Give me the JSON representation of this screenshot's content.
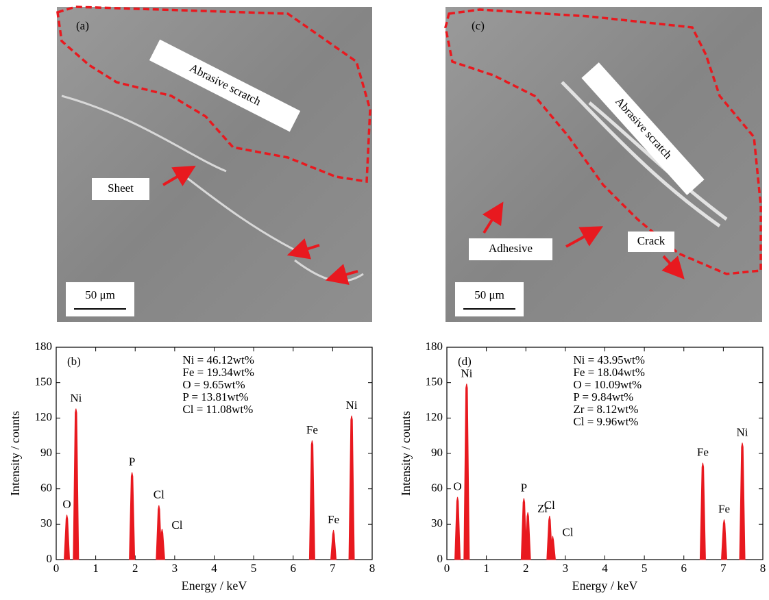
{
  "images": [
    {
      "label": "(a)",
      "annotations": [
        "Abrasive scratch",
        "Sheet"
      ],
      "scale_bar": "50 μm"
    },
    {
      "label": "(c)",
      "annotations": [
        "Abrasive scratch",
        "Adhesive",
        "Crack"
      ],
      "scale_bar": "50 μm"
    }
  ],
  "chart_data": [
    {
      "type": "spectrum",
      "panel": "(b)",
      "xlabel": "Energy / keV",
      "ylabel": "Intensity / counts",
      "annotations": [
        "Ni = 46.12wt%",
        "Fe = 19.34wt%",
        "O = 9.65wt%",
        "P = 13.81wt%",
        "Cl = 11.08wt%"
      ],
      "categories": [
        "O",
        "Ni",
        "P",
        "Cl",
        "Cl",
        "Fe",
        "Fe",
        "Ni"
      ],
      "x": [
        0.27,
        0.5,
        1.92,
        2.6,
        2.68,
        6.48,
        7.02,
        7.48
      ],
      "values": [
        38,
        128,
        74,
        46,
        26,
        101,
        25,
        122
      ],
      "color": "#e8191f",
      "xlim": [
        0,
        8
      ],
      "ylim": [
        0,
        180
      ],
      "xticks": [
        0,
        1,
        2,
        3,
        4,
        5,
        6,
        7,
        8
      ],
      "yticks": [
        0,
        30,
        60,
        90,
        120,
        150,
        180
      ]
    },
    {
      "type": "spectrum",
      "panel": "(d)",
      "xlabel": "Energy / keV",
      "ylabel": "Intensity / counts",
      "annotations": [
        "Ni = 43.95wt%",
        "Fe = 18.04wt%",
        "O = 10.09wt%",
        "P = 9.84wt%",
        "Zr = 8.12wt%",
        "Cl = 9.96wt%"
      ],
      "categories": [
        "O",
        "Ni",
        "P",
        "Zr",
        "Cl",
        "Cl",
        "Fe",
        "Fe",
        "Ni"
      ],
      "x": [
        0.27,
        0.5,
        1.95,
        2.05,
        2.6,
        2.68,
        6.48,
        7.02,
        7.48
      ],
      "values": [
        53,
        149,
        52,
        40,
        37,
        20,
        82,
        34,
        99
      ],
      "color": "#e8191f",
      "xlim": [
        0,
        8
      ],
      "ylim": [
        0,
        180
      ],
      "xticks": [
        0,
        1,
        2,
        3,
        4,
        5,
        6,
        7,
        8
      ],
      "yticks": [
        0,
        30,
        60,
        90,
        120,
        150,
        180
      ]
    }
  ]
}
